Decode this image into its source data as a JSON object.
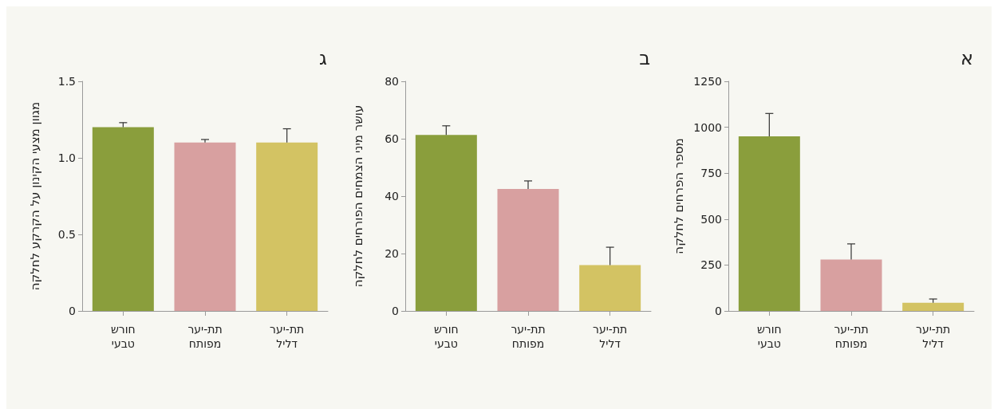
{
  "chart_data": [
    {
      "type": "bar",
      "title": "א",
      "ylabel": "מספר הפרחים לחלקה",
      "categories": [
        "חורש\nטבעי",
        "תת-יער\nמפותח",
        "תת-יער\nדליל"
      ],
      "values": [
        950,
        280,
        45
      ],
      "colors": [
        "#8a9e3c",
        "#d8a0a0",
        "#d3c363"
      ],
      "errors": [
        [
          950,
          1075
        ],
        [
          280,
          365
        ],
        [
          45,
          65
        ]
      ],
      "ylim": [
        0,
        1250
      ],
      "yticks": [
        0,
        250,
        500,
        750,
        1000,
        1250
      ],
      "grid": false
    },
    {
      "type": "bar",
      "title": "ב",
      "ylabel": "עושר מיני הצמחים הפורחים לחלקה",
      "categories": [
        "חורש\nטבעי",
        "תת-יער\nמפותח",
        "תת-יער\nדליל"
      ],
      "values": [
        61.3,
        42.5,
        16
      ],
      "colors": [
        "#8a9e3c",
        "#d8a0a0",
        "#d3c363"
      ],
      "errors": [
        [
          61.3,
          64.5
        ],
        [
          42.5,
          45.3
        ],
        [
          16,
          22.2
        ]
      ],
      "ylim": [
        0,
        80
      ],
      "yticks": [
        0,
        20,
        40,
        60,
        80
      ],
      "grid": false
    },
    {
      "type": "bar",
      "title": "ג",
      "ylabel": "מגוון מצעי הקינון על הקרקע לחלקה",
      "categories": [
        "חורש\nטבעי",
        "תת-יער\nמפותח",
        "תת-יער\nדליל"
      ],
      "values": [
        1.2,
        1.1,
        1.1
      ],
      "colors": [
        "#8a9e3c",
        "#d8a0a0",
        "#d3c363"
      ],
      "errors": [
        [
          1.2,
          1.23
        ],
        [
          1.1,
          1.12
        ],
        [
          1.1,
          1.19
        ]
      ],
      "ylim": [
        0,
        1.5
      ],
      "yticks": [
        0,
        0.5,
        {
          "value": 1,
          "label": "1.0"
        },
        1.5
      ],
      "grid": false
    }
  ]
}
